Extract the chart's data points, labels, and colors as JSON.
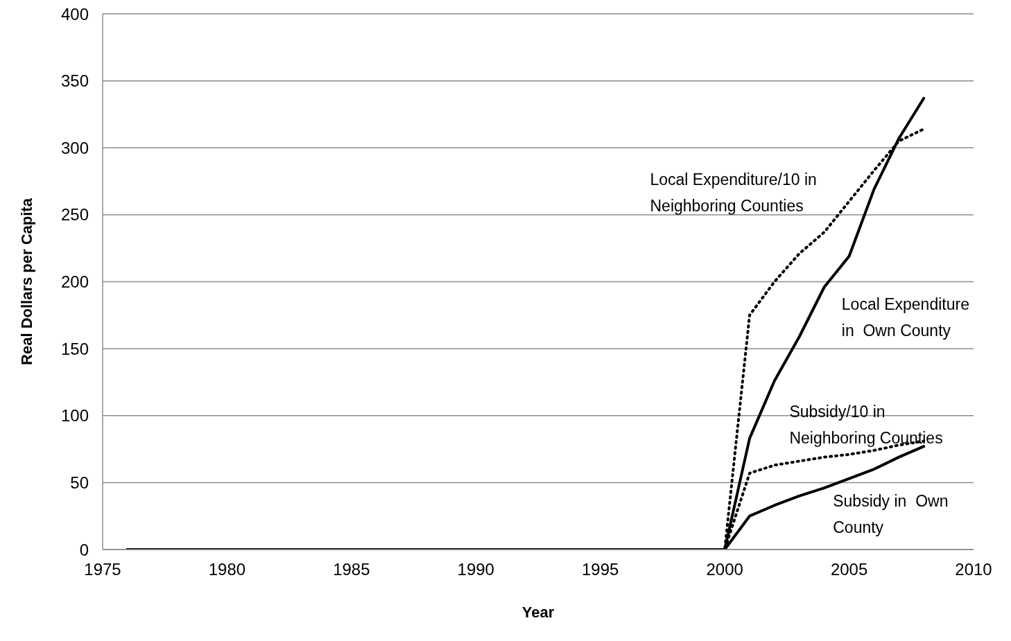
{
  "chart_data": {
    "type": "line",
    "xlabel": "Year",
    "ylabel": "Real Dollars  per Capita",
    "x": [
      1976,
      2000,
      2001,
      2002,
      2003,
      2004,
      2005,
      2006,
      2007,
      2008
    ],
    "series": [
      {
        "name": "Local Expenditure\nin  Own County",
        "color": "#000000",
        "line_style": "solid",
        "values": [
          0,
          0,
          83,
          126,
          159,
          196,
          219,
          269,
          307,
          337
        ]
      },
      {
        "name": "Local Expenditure/10 in\nNeighboring Counties",
        "color": "#000000",
        "line_style": "dotted",
        "values": [
          0,
          0,
          175,
          200,
          221,
          237,
          260,
          283,
          305,
          314
        ]
      },
      {
        "name": "Subsidy/10 in\nNeighboring Counties",
        "color": "#000000",
        "line_style": "dotted",
        "values": [
          0,
          0,
          57,
          63,
          66,
          69,
          71,
          74,
          78,
          81
        ]
      },
      {
        "name": "Subsidy in  Own\nCounty",
        "color": "#000000",
        "line_style": "solid",
        "values": [
          0,
          0,
          25,
          33,
          40,
          46,
          53,
          60,
          69,
          77
        ]
      }
    ],
    "xlim": [
      1975,
      2010
    ],
    "xticks": [
      1975,
      1980,
      1985,
      1990,
      1995,
      2000,
      2005,
      2010
    ],
    "ylim": [
      0,
      400
    ],
    "yticks": [
      0,
      50,
      100,
      150,
      200,
      250,
      300,
      350,
      400
    ],
    "grid": "y",
    "marker": "none"
  }
}
